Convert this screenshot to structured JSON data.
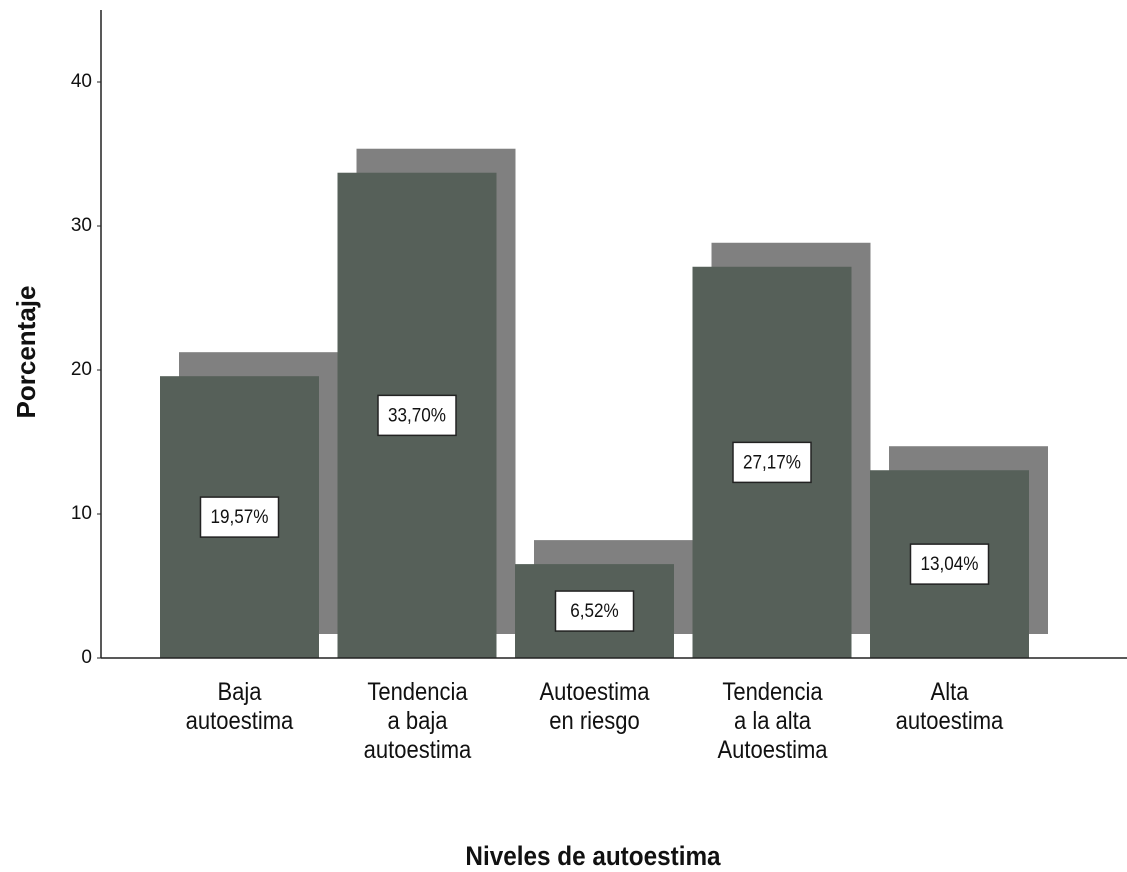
{
  "chart_data": {
    "type": "bar",
    "categories": [
      "Baja\nautoestima",
      "Tendencia\na baja\nautoestima",
      "Autoestima\nen riesgo",
      "Tendencia\na la alta\nAutoestima",
      "Alta\nautoestima"
    ],
    "values": [
      19.57,
      33.7,
      6.52,
      27.17,
      13.04
    ],
    "value_labels": [
      "19,57%",
      "33,70%",
      "6,52%",
      "27,17%",
      "13,04%"
    ],
    "color": "#566059",
    "shadow_color": "#808080",
    "ylabel": "Porcentaje",
    "xlabel": "Niveles de autoestima",
    "ylim": [
      0,
      45
    ],
    "yticks": [
      0,
      10,
      20,
      30,
      40
    ],
    "grid": false
  }
}
